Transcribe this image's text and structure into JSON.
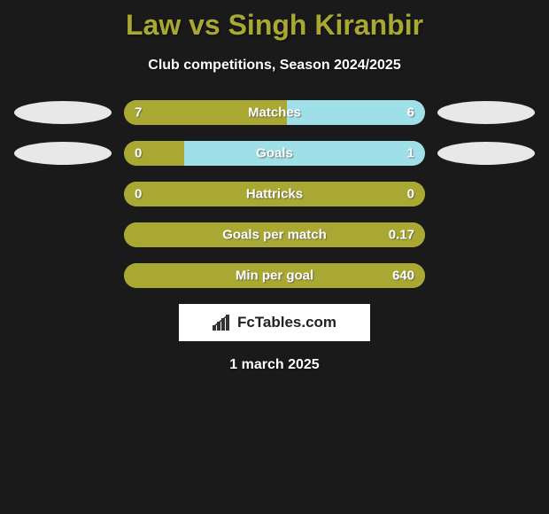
{
  "title": "Law vs Singh Kiranbir",
  "subtitle": "Club competitions, Season 2024/2025",
  "date": "1 march 2025",
  "brand": "FcTables.com",
  "colors": {
    "left": "#a8a832",
    "right": "#9fe0e8",
    "ellipse_left": "#e8e8e8",
    "ellipse_right": "#e8e8e8",
    "background": "#1a1a1a",
    "title_color": "#a8a832",
    "text_color": "#ffffff"
  },
  "bar": {
    "container_width": 340,
    "container_height": 28,
    "border_radius": 14,
    "label_fontsize": 15,
    "label_fontweight": 800
  },
  "stats": [
    {
      "name": "Matches",
      "left_val": "7",
      "right_val": "6",
      "left_pct": 54,
      "right_pct": 46,
      "show_ellipse": true
    },
    {
      "name": "Goals",
      "left_val": "0",
      "right_val": "1",
      "left_pct": 20,
      "right_pct": 80,
      "show_ellipse": true
    },
    {
      "name": "Hattricks",
      "left_val": "0",
      "right_val": "0",
      "left_pct": 100,
      "right_pct": 0,
      "show_ellipse": false
    },
    {
      "name": "Goals per match",
      "left_val": "",
      "right_val": "0.17",
      "left_pct": 100,
      "right_pct": 0,
      "show_ellipse": false
    },
    {
      "name": "Min per goal",
      "left_val": "",
      "right_val": "640",
      "left_pct": 100,
      "right_pct": 0,
      "show_ellipse": false
    }
  ]
}
